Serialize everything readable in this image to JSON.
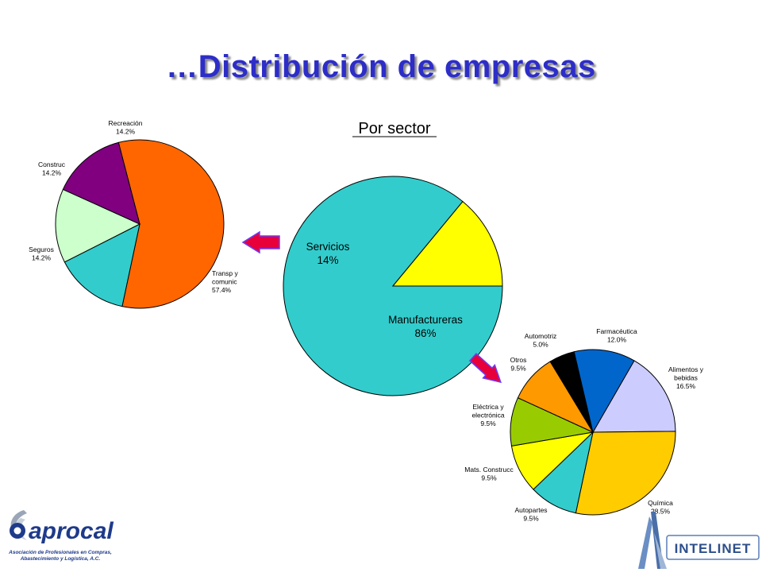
{
  "page": {
    "title": "…Distribución de empresas"
  },
  "colors": {
    "title": "#2d2dc8",
    "arrow_fill": "#e8003a",
    "arrow_outline": "#6a3cff"
  },
  "chart_data": [
    {
      "id": "sector",
      "type": "pie",
      "title": "Por sector",
      "slices": [
        {
          "label": "Manufactureras",
          "value": 86,
          "value_label": "86%",
          "color": "#33cccc"
        },
        {
          "label": "Servicios",
          "value": 14,
          "value_label": "14%",
          "color": "#ffff00"
        }
      ]
    },
    {
      "id": "servicios",
      "type": "pie",
      "title": "",
      "slices": [
        {
          "label": "Transp y comunic",
          "value": 57.4,
          "value_label": "57.4%",
          "color": "#ff6600"
        },
        {
          "label": "Seguros",
          "value": 14.2,
          "value_label": "14.2%",
          "color": "#33cccc"
        },
        {
          "label": "Construc",
          "value": 14.2,
          "value_label": "14.2%",
          "color": "#ccffcc"
        },
        {
          "label": "Recreación",
          "value": 14.2,
          "value_label": "14.2%",
          "color": "#800080"
        }
      ]
    },
    {
      "id": "manufactureras",
      "type": "pie",
      "title": "",
      "slices": [
        {
          "label": "Alimentos y bebidas",
          "value": 16.5,
          "value_label": "16.5%",
          "color": "#ccccff"
        },
        {
          "label": "Química",
          "value": 28.5,
          "value_label": "28.5%",
          "color": "#ffcc00"
        },
        {
          "label": "Autopartes",
          "value": 9.5,
          "value_label": "9.5%",
          "color": "#33cccc"
        },
        {
          "label": "Mats. Construcc",
          "value": 9.5,
          "value_label": "9.5%",
          "color": "#ffff00"
        },
        {
          "label": "Eléctrica y electrónica",
          "value": 9.5,
          "value_label": "9.5%",
          "color": "#99cc00"
        },
        {
          "label": "Otros",
          "value": 9.5,
          "value_label": "9.5%",
          "color": "#ff9900"
        },
        {
          "label": "Automotriz",
          "value": 5.0,
          "value_label": "5.0%",
          "color": "#000000"
        },
        {
          "label": "Farmacéutica",
          "value": 12.0,
          "value_label": "12.0%",
          "color": "#0066cc"
        }
      ]
    }
  ],
  "logos": {
    "aprocal": {
      "name": "aprocal",
      "subtitle_1": "Asociación de Profesionales en Compras,",
      "subtitle_2": "Abastecimiento y Logística, A.C."
    },
    "intelinet": {
      "name": "INTELINET"
    }
  }
}
